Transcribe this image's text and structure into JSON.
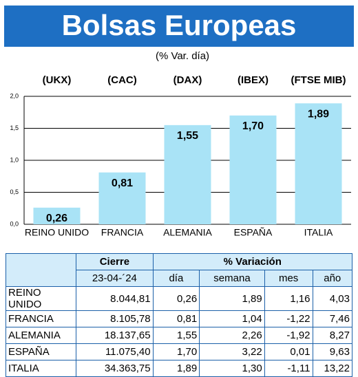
{
  "chart_data": {
    "type": "bar",
    "title": "Bolsas Europeas",
    "subtitle": "(% Var. día)",
    "indices": [
      "(UKX)",
      "(CAC)",
      "(DAX)",
      "(IBEX)",
      "(FTSE MIB)"
    ],
    "categories": [
      "REINO UNIDO",
      "FRANCIA",
      "ALEMANIA",
      "ESPAÑA",
      "ITALIA"
    ],
    "values": [
      0.26,
      0.81,
      1.55,
      1.7,
      1.89
    ],
    "value_labels": [
      "0,26",
      "0,81",
      "1,55",
      "1,70",
      "1,89"
    ],
    "color": "#a9e3f6",
    "ylim": [
      0,
      2
    ],
    "yticks": [
      {
        "value": 0,
        "label": "0,0"
      },
      {
        "value": 0.5,
        "label": "0,5"
      },
      {
        "value": 1,
        "label": "1,0"
      },
      {
        "value": 1.5,
        "label": "1,5"
      },
      {
        "value": 2,
        "label": "2,0"
      }
    ],
    "grid": true
  },
  "table": {
    "header": [
      "Cierre",
      "% Variación"
    ],
    "subheader": [
      "23-04-´24",
      "día",
      "semana",
      "mes",
      "año"
    ],
    "rows": [
      [
        "REINO UNIDO",
        "8.044,81",
        "0,26",
        "1,89",
        "1,16",
        "4,03"
      ],
      [
        "FRANCIA",
        "8.105,78",
        "0,81",
        "1,04",
        "-1,22",
        "7,46"
      ],
      [
        "ALEMANIA",
        "18.137,65",
        "1,55",
        "2,26",
        "-1,92",
        "8,27"
      ],
      [
        "ESPAÑA",
        "11.075,40",
        "1,70",
        "3,22",
        "0,01",
        "9,63"
      ],
      [
        "ITALIA",
        "34.363,75",
        "1,89",
        "1,30",
        "-1,11",
        "13,22"
      ]
    ]
  }
}
